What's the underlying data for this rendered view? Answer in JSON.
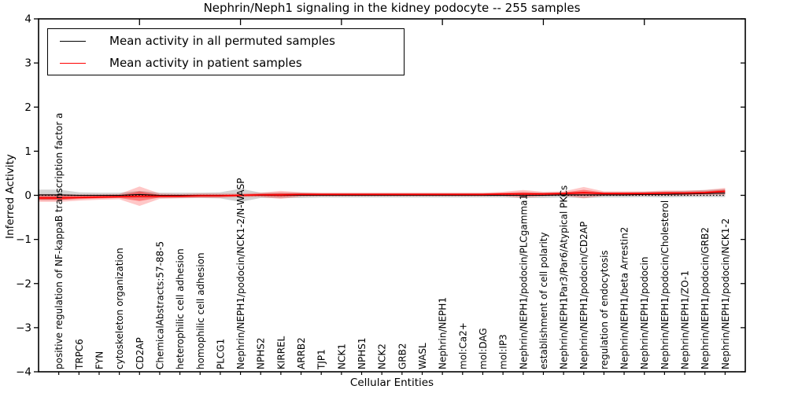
{
  "title": "Nephrin/Neph1 signaling in the kidney podocyte -- 255 samples",
  "legend": {
    "items": [
      {
        "label": "Mean activity in all permuted samples",
        "color": "#000000"
      },
      {
        "label": "Mean activity in patient samples",
        "color": "#ff0000"
      }
    ]
  },
  "axes": {
    "xlabel": "Cellular Entities",
    "ylabel": "Inferred Activity"
  },
  "colors": {
    "permuted_line": "#000000",
    "patient_line": "#ff0000",
    "permuted_band": "rgba(110,110,110,0.30)",
    "patient_band_outer": "rgba(255,0,0,0.22)",
    "patient_band_inner": "rgba(255,0,0,0.38)",
    "axis": "#000000"
  },
  "chart_data": {
    "type": "line",
    "title": "Nephrin/Neph1 signaling in the kidney podocyte -- 255 samples",
    "xlabel": "Cellular Entities",
    "ylabel": "Inferred Activity",
    "ylim": [
      -4,
      4
    ],
    "yticks": [
      {
        "v": 4,
        "label": "4"
      },
      {
        "v": 3,
        "label": "3"
      },
      {
        "v": 2,
        "label": "2"
      },
      {
        "v": 1,
        "label": "1"
      },
      {
        "v": 0,
        "label": "0"
      },
      {
        "v": -1,
        "label": "−1"
      },
      {
        "v": -2,
        "label": "−2"
      },
      {
        "v": -3,
        "label": "−3"
      },
      {
        "v": -4,
        "label": "−4"
      }
    ],
    "grid": false,
    "legend_position": "upper left",
    "zero_reference_line": 0,
    "x_major_tick_every": 5,
    "categories": [
      "positive regulation of NF-kappaB transcription factor a",
      "TRPC6",
      "FYN",
      "cytoskeleton organization",
      "CD2AP",
      "ChemicalAbstracts:57-88-5",
      "heterophilic cell adhesion",
      "homophilic cell adhesion",
      "PLCG1",
      "Nephrin/NEPH1/podocin/NCK1-2/N-WASP",
      "NPHS2",
      "KIRREL",
      "ARRB2",
      "TJP1",
      "NCK1",
      "NPHS1",
      "NCK2",
      "GRB2",
      "WASL",
      "Nephrin/NEPH1",
      "mol:Ca2+",
      "mol:DAG",
      "mol:IP3",
      "Nephrin/NEPH1/podocin/PLCgamma1",
      "establishment of cell polarity",
      "Nephrin/NEPH1Par3/Par6/Atypical PKCs",
      "Nephrin/NEPH1/podocin/CD2AP",
      "regulation of endocytosis",
      "Nephrin/NEPH1/beta Arrestin2",
      "Nephrin/NEPH1/podocin",
      "Nephrin/NEPH1/podocin/Cholesterol",
      "Nephrin/NEPH1/ZO-1",
      "Nephrin/NEPH1/podocin/GRB2",
      "Nephrin/NEPH1/podocin/NCK1-2"
    ],
    "series": [
      {
        "name": "Mean activity in all permuted samples",
        "color": "#000000",
        "values": [
          0.01,
          0.0,
          0.0,
          0.0,
          0.02,
          0.0,
          0.0,
          0.0,
          0.0,
          0.0,
          0.0,
          0.0,
          0.0,
          0.0,
          0.0,
          0.0,
          0.0,
          0.0,
          0.0,
          0.0,
          0.0,
          0.0,
          0.0,
          0.0,
          0.0,
          0.01,
          0.01,
          0.01,
          0.01,
          0.02,
          0.02,
          0.03,
          0.04,
          0.05
        ],
        "std": [
          0.12,
          0.07,
          0.06,
          0.06,
          0.08,
          0.06,
          0.06,
          0.06,
          0.07,
          0.15,
          0.06,
          0.06,
          0.06,
          0.05,
          0.05,
          0.05,
          0.05,
          0.05,
          0.05,
          0.05,
          0.05,
          0.05,
          0.05,
          0.06,
          0.06,
          0.06,
          0.07,
          0.06,
          0.06,
          0.06,
          0.07,
          0.07,
          0.08,
          0.09
        ]
      },
      {
        "name": "Mean activity in patient samples",
        "color": "#ff0000",
        "values": [
          -0.06,
          -0.05,
          -0.04,
          -0.03,
          -0.02,
          -0.02,
          -0.02,
          -0.01,
          -0.01,
          0.0,
          0.01,
          0.01,
          0.02,
          0.02,
          0.02,
          0.02,
          0.02,
          0.02,
          0.02,
          0.02,
          0.02,
          0.02,
          0.03,
          0.03,
          0.03,
          0.04,
          0.06,
          0.04,
          0.04,
          0.04,
          0.05,
          0.05,
          0.06,
          0.09
        ],
        "std": [
          0.09,
          0.07,
          0.06,
          0.06,
          0.22,
          0.06,
          0.05,
          0.05,
          0.05,
          0.04,
          0.05,
          0.09,
          0.05,
          0.04,
          0.04,
          0.04,
          0.04,
          0.04,
          0.04,
          0.04,
          0.04,
          0.04,
          0.05,
          0.09,
          0.05,
          0.05,
          0.13,
          0.05,
          0.05,
          0.05,
          0.06,
          0.06,
          0.06,
          0.08
        ]
      }
    ]
  }
}
